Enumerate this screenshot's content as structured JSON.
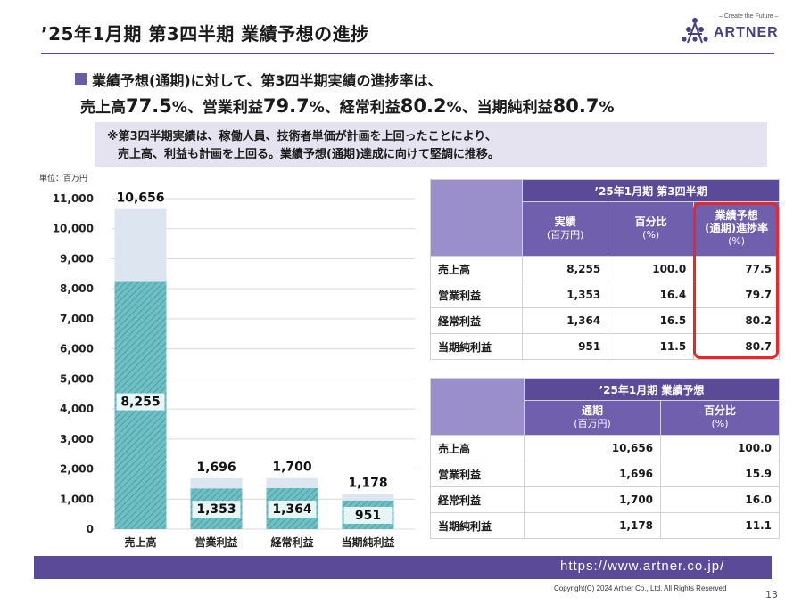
{
  "header": {
    "title": "’25年1月期 第3四半期 業績予想の進捗",
    "logo_tagline": "– Create the Future –",
    "logo_text": "ARTNER"
  },
  "lead": {
    "line1": "業績予想(通期)に対して、第3四半期実績の進捗率は、",
    "items": [
      {
        "label": "売上高",
        "value": "77.5",
        "unit": "%"
      },
      {
        "label": "営業利益",
        "value": "79.7",
        "unit": "%"
      },
      {
        "label": "経常利益",
        "value": "80.2",
        "unit": "%"
      },
      {
        "label": "当期純利益",
        "value": "80.7",
        "unit": "%"
      }
    ],
    "sep": "、"
  },
  "note": {
    "line1": "※第3四半期実績は、稼働人員、技術者単価が計画を上回ったことにより、",
    "line2_plain": "売上高、利益も計画を上回る。",
    "line2_underlined": "業績予想(通期)達成に向けて堅調に推移。"
  },
  "chart_unit": "単位：百万円",
  "chart_data": {
    "type": "bar",
    "categories": [
      "売上高",
      "営業利益",
      "経常利益",
      "当期純利益"
    ],
    "series": [
      {
        "values": [
          10656,
          1696,
          1700,
          1178
        ],
        "labels": [
          "10,656",
          "1,696",
          "1,700",
          "1,178"
        ],
        "color": "#dde5f1"
      },
      {
        "values": [
          8255,
          1353,
          1364,
          951
        ],
        "labels": [
          "8,255",
          "1,353",
          "1,364",
          "951"
        ],
        "color": "#5fb3b8"
      }
    ],
    "ylim": [
      0,
      11000
    ],
    "yticks": [
      0,
      1000,
      2000,
      3000,
      4000,
      5000,
      6000,
      7000,
      8000,
      9000,
      10000,
      11000
    ],
    "ytick_labels": [
      "0",
      "1,000",
      "2,000",
      "3,000",
      "4,000",
      "5,000",
      "6,000",
      "7,000",
      "8,000",
      "9,000",
      "10,000",
      "11,000"
    ],
    "grid": true
  },
  "table1": {
    "title": "’25年1月期 第3四半期",
    "col1": "実績",
    "col1_sub": "(百万円)",
    "col2": "百分比",
    "col2_sub": "(%)",
    "col3_a": "業績予想",
    "col3_b": "(通期)進捗率",
    "col3_sub": "(%)",
    "rows": [
      {
        "label": "売上高",
        "v1": "8,255",
        "v2": "100.0",
        "v3": "77.5"
      },
      {
        "label": "営業利益",
        "v1": "1,353",
        "v2": "16.4",
        "v3": "79.7"
      },
      {
        "label": "経常利益",
        "v1": "1,364",
        "v2": "16.5",
        "v3": "80.2"
      },
      {
        "label": "当期純利益",
        "v1": "951",
        "v2": "11.5",
        "v3": "80.7"
      }
    ]
  },
  "table2": {
    "title": "’25年1月期 業績予想",
    "col1": "通期",
    "col1_sub": "(百万円)",
    "col2": "百分比",
    "col2_sub": "(%)",
    "rows": [
      {
        "label": "売上高",
        "v1": "10,656",
        "v2": "100.0"
      },
      {
        "label": "営業利益",
        "v1": "1,696",
        "v2": "15.9"
      },
      {
        "label": "経常利益",
        "v1": "1,700",
        "v2": "16.0"
      },
      {
        "label": "当期純利益",
        "v1": "1,178",
        "v2": "11.1"
      }
    ]
  },
  "footer": {
    "url": "https://www.artner.co.jp/",
    "copyright": "Copyright(C) 2024 Artner Co., Ltd. All Rights Reserved",
    "page": "13"
  },
  "colors": {
    "accent": "#5b4a98",
    "highlight": "#e8262b"
  }
}
